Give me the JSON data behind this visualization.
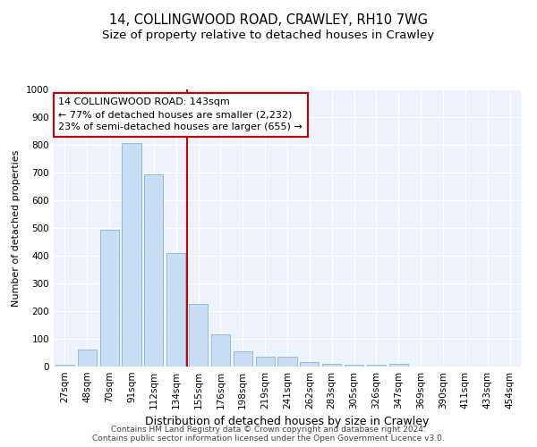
{
  "title": "14, COLLINGWOOD ROAD, CRAWLEY, RH10 7WG",
  "subtitle": "Size of property relative to detached houses in Crawley",
  "xlabel": "Distribution of detached houses by size in Crawley",
  "ylabel": "Number of detached properties",
  "bar_labels": [
    "27sqm",
    "48sqm",
    "70sqm",
    "91sqm",
    "112sqm",
    "134sqm",
    "155sqm",
    "176sqm",
    "198sqm",
    "219sqm",
    "241sqm",
    "262sqm",
    "283sqm",
    "305sqm",
    "326sqm",
    "347sqm",
    "369sqm",
    "390sqm",
    "411sqm",
    "433sqm",
    "454sqm"
  ],
  "bar_values": [
    5,
    60,
    495,
    805,
    695,
    410,
    225,
    115,
    55,
    35,
    35,
    15,
    10,
    5,
    5,
    10,
    0,
    0,
    0,
    0,
    0
  ],
  "bar_color": "#c9ddf5",
  "bar_edge_color": "#7bacd4",
  "vline_color": "#cc0000",
  "annotation_text": "14 COLLINGWOOD ROAD: 143sqm\n← 77% of detached houses are smaller (2,232)\n23% of semi-detached houses are larger (655) →",
  "annotation_box_color": "#ffffff",
  "annotation_box_edge_color": "#cc0000",
  "ylim": [
    0,
    1000
  ],
  "yticks": [
    0,
    100,
    200,
    300,
    400,
    500,
    600,
    700,
    800,
    900,
    1000
  ],
  "bg_color": "#edf2fb",
  "footer_line1": "Contains HM Land Registry data © Crown copyright and database right 2024.",
  "footer_line2": "Contains public sector information licensed under the Open Government Licence v3.0.",
  "title_fontsize": 10.5,
  "subtitle_fontsize": 9.5,
  "xlabel_fontsize": 9,
  "ylabel_fontsize": 8,
  "tick_fontsize": 7.5,
  "annotation_fontsize": 8,
  "footer_fontsize": 6.5,
  "vline_x_index": 5.5
}
